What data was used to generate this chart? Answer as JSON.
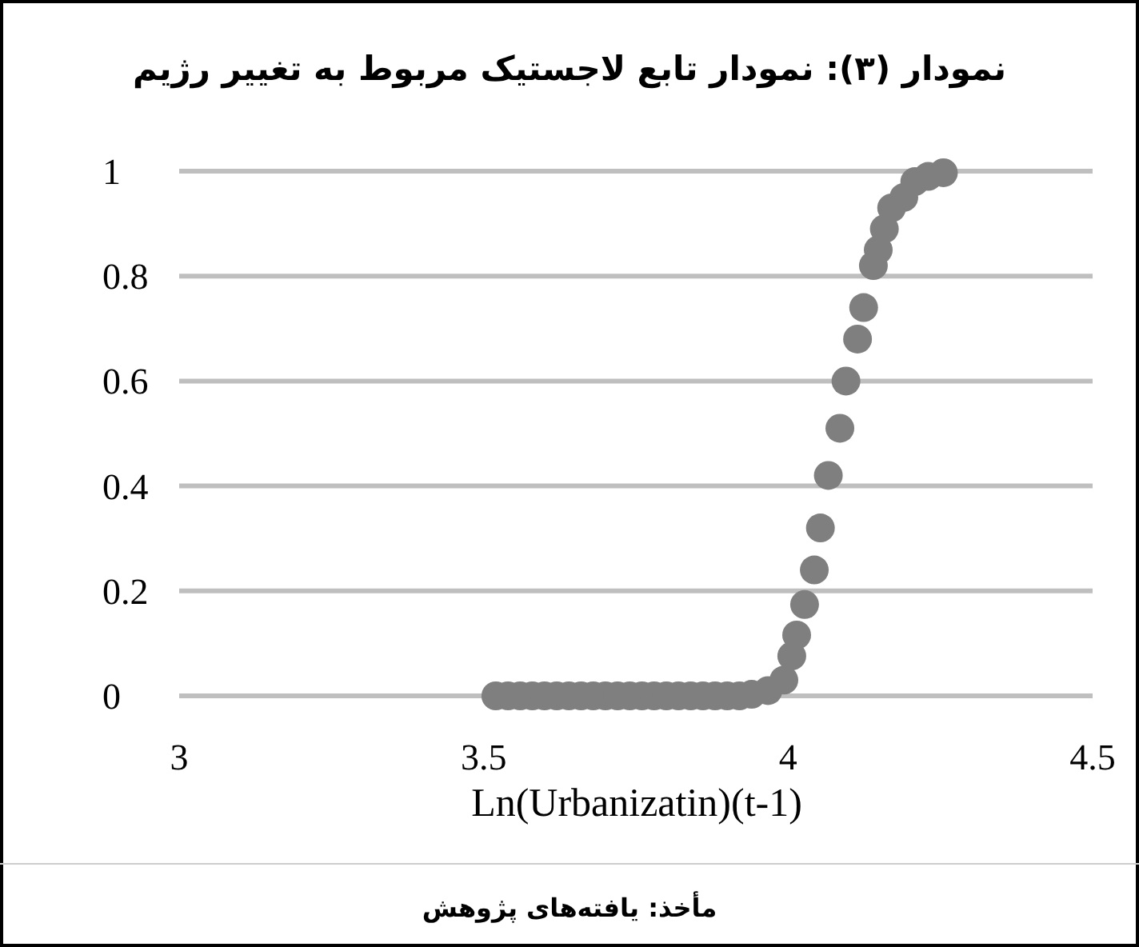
{
  "chart_data": {
    "type": "scatter",
    "title": "نمودار (۳): نمودار تابع لاجستیک مربوط به تغییر رژیم",
    "xlabel": "Ln(Urbanizatin)(t-1)",
    "annotations": [
      "مأخذ: یافته‌های پژوهش"
    ],
    "x": [
      3.52,
      3.54,
      3.56,
      3.58,
      3.6,
      3.62,
      3.64,
      3.66,
      3.68,
      3.7,
      3.72,
      3.74,
      3.76,
      3.78,
      3.8,
      3.82,
      3.84,
      3.86,
      3.88,
      3.9,
      3.92,
      3.94,
      3.967,
      3.993,
      4.006,
      4.014,
      4.027,
      4.043,
      4.053,
      4.066,
      4.085,
      4.095,
      4.114,
      4.124,
      4.14,
      4.148,
      4.158,
      4.17,
      4.19,
      4.208,
      4.23,
      4.255
    ],
    "series": [
      {
        "color": "#7f7f7f",
        "values": [
          0,
          0,
          0,
          0,
          0,
          0,
          0,
          0,
          0,
          0,
          0,
          0,
          0,
          0,
          0,
          0,
          0,
          0,
          0,
          0,
          0,
          0.003,
          0.01,
          0.03,
          0.076,
          0.116,
          0.174,
          0.24,
          0.32,
          0.42,
          0.51,
          0.6,
          0.68,
          0.74,
          0.82,
          0.85,
          0.89,
          0.93,
          0.95,
          0.98,
          0.99,
          0.997
        ]
      }
    ],
    "xlim": [
      3,
      4.5
    ],
    "ylim": [
      0,
      1
    ],
    "xticks": [
      3,
      3.5,
      4,
      4.5
    ],
    "yticks": [
      0,
      0.2,
      0.4,
      0.6,
      0.8,
      1
    ],
    "grid": "y",
    "marker": "circle"
  }
}
